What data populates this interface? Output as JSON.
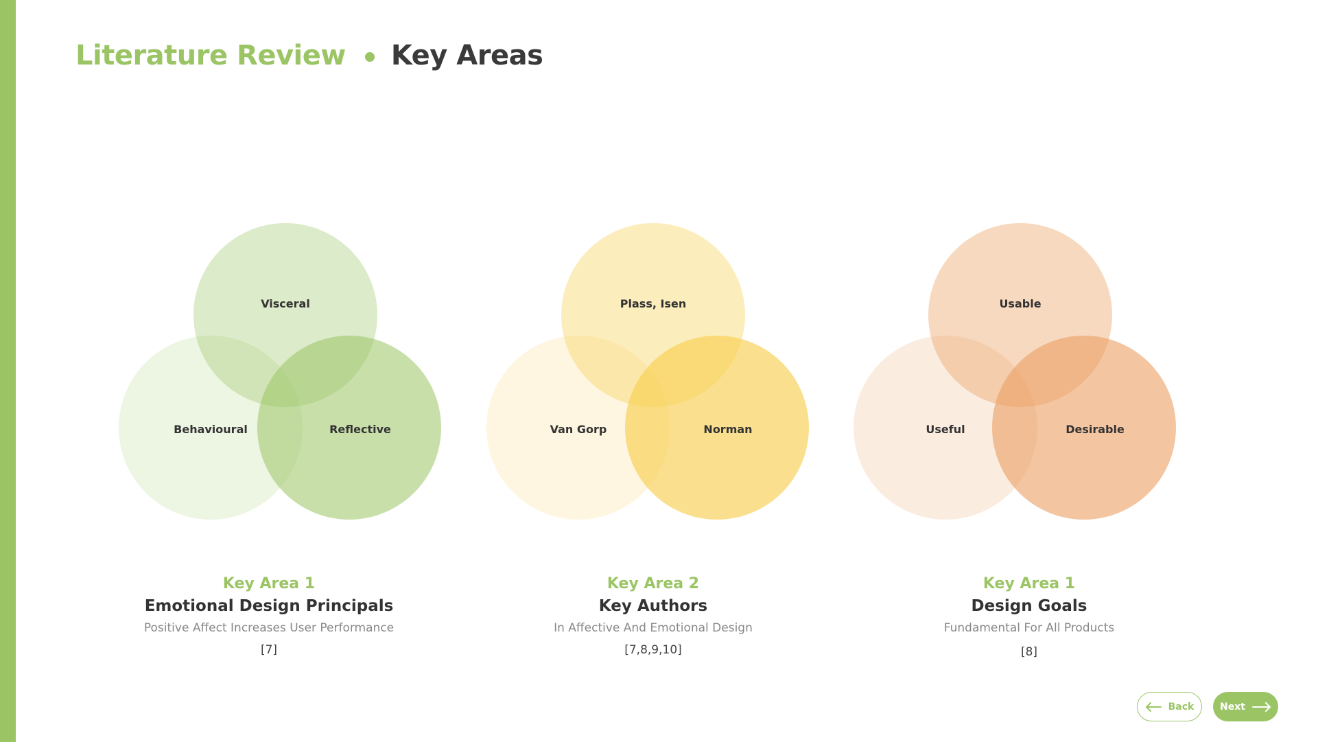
{
  "header": {
    "section": "Literature Review",
    "title": "Key Areas"
  },
  "colors": {
    "accent": "#9bc565",
    "green": "#9bc565",
    "yellow": "#f7cf52",
    "orange": "#eb9f62"
  },
  "areas": [
    {
      "label": "Key Area 1",
      "title": "Emotional Design Principals",
      "subtitle": "Positive Affect Increases User Performance",
      "ref": "[7]",
      "circles": {
        "top": "Visceral",
        "left": "Behavioural",
        "right": "Reflective"
      }
    },
    {
      "label": "Key Area 2",
      "title": "Key Authors",
      "subtitle": "In Affective And Emotional Design",
      "ref": "[7,8,9,10]",
      "circles": {
        "top": "Plass, Isen",
        "left": "Van Gorp",
        "right": "Norman"
      }
    },
    {
      "label": "Key Area 1",
      "title": "Design Goals",
      "subtitle": "Fundamental For All Products",
      "ref": "[8]",
      "circles": {
        "top": "Usable",
        "left": "Useful",
        "right": "Desirable"
      }
    }
  ],
  "nav": {
    "back": "Back",
    "next": "Next"
  }
}
